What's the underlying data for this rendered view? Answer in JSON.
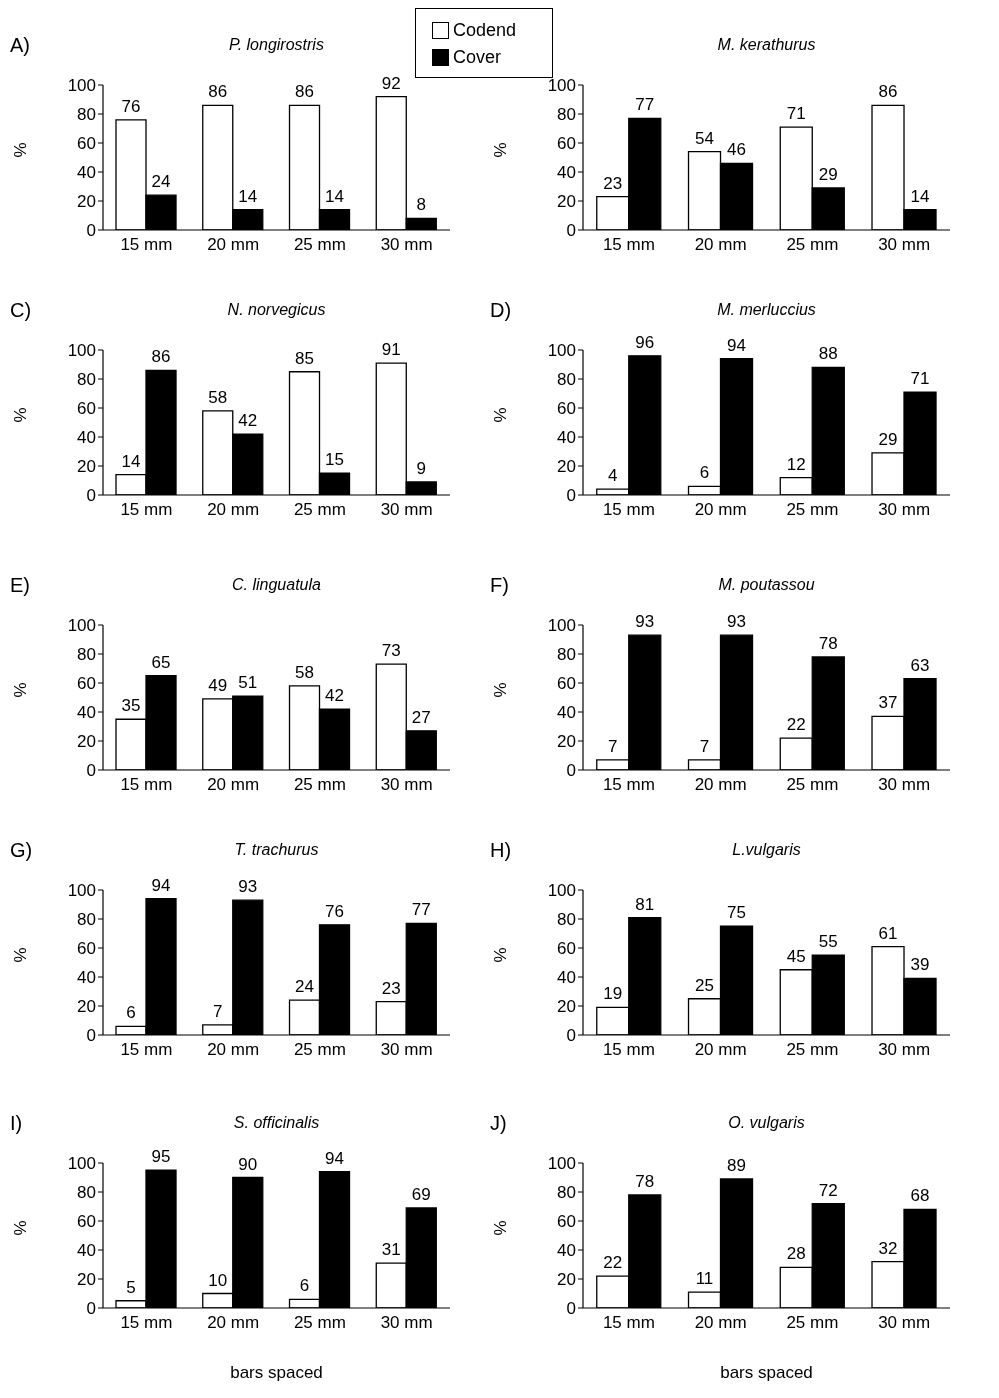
{
  "chart_data": [
    {
      "type": "bar",
      "title": "P. longirostris",
      "annotations": [
        "A)"
      ],
      "ylabel": "%",
      "categories": [
        "15 mm",
        "20 mm",
        "25 mm",
        "30 mm"
      ],
      "series": [
        {
          "name": "Codend",
          "color": "#ffffff",
          "values": [
            76,
            86,
            86,
            92
          ]
        },
        {
          "name": "Cover",
          "color": "#000000",
          "values": [
            24,
            14,
            14,
            8
          ]
        }
      ],
      "ylim": [
        0,
        100
      ],
      "yticks": [
        0,
        20,
        40,
        60,
        80,
        100
      ],
      "data_labels": true,
      "legend": "top right"
    },
    {
      "type": "bar",
      "title": "M. kerathurus",
      "ylabel": "%",
      "categories": [
        "15 mm",
        "20 mm",
        "25 mm",
        "30 mm"
      ],
      "series": [
        {
          "color": "#ffffff",
          "values": [
            23,
            54,
            71,
            86
          ]
        },
        {
          "color": "#000000",
          "values": [
            77,
            46,
            29,
            14
          ]
        }
      ],
      "ylim": [
        0,
        100
      ],
      "yticks": [
        0,
        20,
        40,
        60,
        80,
        100
      ],
      "data_labels": true
    },
    {
      "type": "bar",
      "title": "N. norvegicus",
      "annotations": [
        "C)"
      ],
      "ylabel": "%",
      "categories": [
        "15 mm",
        "20 mm",
        "25 mm",
        "30 mm"
      ],
      "series": [
        {
          "color": "#ffffff",
          "values": [
            14,
            58,
            85,
            91
          ]
        },
        {
          "color": "#000000",
          "values": [
            86,
            42,
            15,
            9
          ]
        }
      ],
      "ylim": [
        0,
        100
      ],
      "yticks": [
        0,
        20,
        40,
        60,
        80,
        100
      ],
      "data_labels": true
    },
    {
      "type": "bar",
      "title": "M. merluccius",
      "annotations": [
        "D)"
      ],
      "ylabel": "%",
      "categories": [
        "15 mm",
        "20 mm",
        "25 mm",
        "30 mm"
      ],
      "series": [
        {
          "color": "#ffffff",
          "values": [
            4,
            6,
            12,
            29
          ]
        },
        {
          "color": "#000000",
          "values": [
            96,
            94,
            88,
            71
          ]
        }
      ],
      "ylim": [
        0,
        100
      ],
      "yticks": [
        0,
        20,
        40,
        60,
        80,
        100
      ],
      "data_labels": true
    },
    {
      "type": "bar",
      "title": "C. linguatula",
      "annotations": [
        "E)"
      ],
      "ylabel": "%",
      "categories": [
        "15 mm",
        "20 mm",
        "25 mm",
        "30 mm"
      ],
      "series": [
        {
          "color": "#ffffff",
          "values": [
            35,
            49,
            58,
            73
          ]
        },
        {
          "color": "#000000",
          "values": [
            65,
            51,
            42,
            27
          ]
        }
      ],
      "ylim": [
        0,
        100
      ],
      "yticks": [
        0,
        20,
        40,
        60,
        80,
        100
      ],
      "data_labels": true
    },
    {
      "type": "bar",
      "title": "M. poutassou",
      "annotations": [
        "F)"
      ],
      "ylabel": "%",
      "categories": [
        "15 mm",
        "20 mm",
        "25 mm",
        "30 mm"
      ],
      "series": [
        {
          "color": "#ffffff",
          "values": [
            7,
            7,
            22,
            37
          ]
        },
        {
          "color": "#000000",
          "values": [
            93,
            93,
            78,
            63
          ]
        }
      ],
      "ylim": [
        0,
        100
      ],
      "yticks": [
        0,
        20,
        40,
        60,
        80,
        100
      ],
      "data_labels": true
    },
    {
      "type": "bar",
      "title": "T. trachurus",
      "annotations": [
        "G)"
      ],
      "ylabel": "%",
      "categories": [
        "15 mm",
        "20 mm",
        "25 mm",
        "30 mm"
      ],
      "series": [
        {
          "color": "#ffffff",
          "values": [
            6,
            7,
            24,
            23
          ]
        },
        {
          "color": "#000000",
          "values": [
            94,
            93,
            76,
            77
          ]
        }
      ],
      "ylim": [
        0,
        100
      ],
      "yticks": [
        0,
        20,
        40,
        60,
        80,
        100
      ],
      "data_labels": true
    },
    {
      "type": "bar",
      "title": "L.vulgaris",
      "annotations": [
        "H)"
      ],
      "ylabel": "%",
      "categories": [
        "15 mm",
        "20 mm",
        "25 mm",
        "30 mm"
      ],
      "series": [
        {
          "color": "#ffffff",
          "values": [
            19,
            25,
            45,
            61
          ]
        },
        {
          "color": "#000000",
          "values": [
            81,
            75,
            55,
            39
          ]
        }
      ],
      "ylim": [
        0,
        100
      ],
      "yticks": [
        0,
        20,
        40,
        60,
        80,
        100
      ],
      "data_labels": true
    },
    {
      "type": "bar",
      "title": "S. officinalis",
      "annotations": [
        "I)"
      ],
      "ylabel": "%",
      "xlabel": "bars spaced",
      "categories": [
        "15 mm",
        "20 mm",
        "25 mm",
        "30 mm"
      ],
      "series": [
        {
          "color": "#ffffff",
          "values": [
            5,
            10,
            6,
            31
          ]
        },
        {
          "color": "#000000",
          "values": [
            95,
            90,
            94,
            69
          ]
        }
      ],
      "ylim": [
        0,
        100
      ],
      "yticks": [
        0,
        20,
        40,
        60,
        80,
        100
      ],
      "data_labels": true
    },
    {
      "type": "bar",
      "title": "O. vulgaris",
      "annotations": [
        "J)"
      ],
      "ylabel": "%",
      "xlabel": "bars spaced",
      "categories": [
        "15 mm",
        "20 mm",
        "25 mm",
        "30 mm"
      ],
      "series": [
        {
          "color": "#ffffff",
          "values": [
            22,
            11,
            28,
            32
          ]
        },
        {
          "color": "#000000",
          "values": [
            78,
            89,
            72,
            68
          ]
        }
      ],
      "ylim": [
        0,
        100
      ],
      "yticks": [
        0,
        20,
        40,
        60,
        80,
        100
      ],
      "data_labels": true
    }
  ]
}
